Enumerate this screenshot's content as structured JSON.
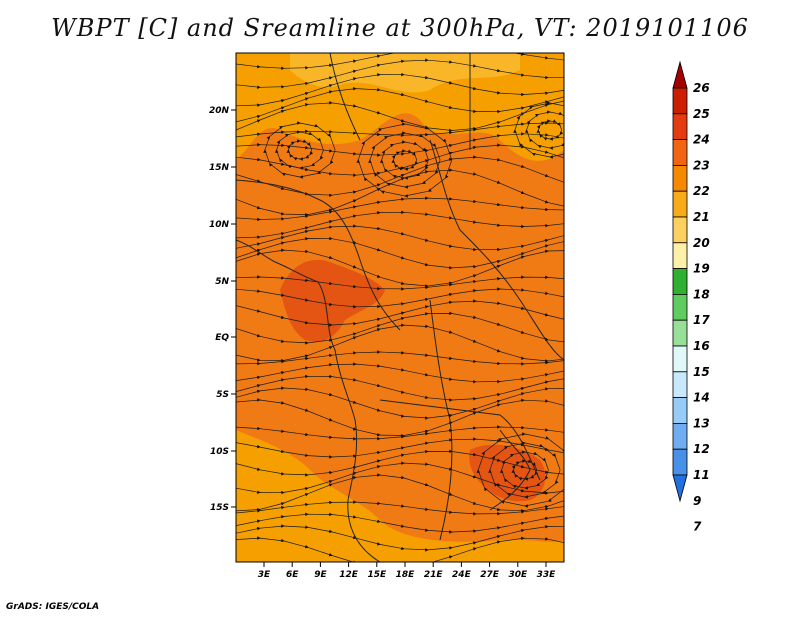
{
  "title": "WBPT [C] and Sreamline at 300hPa, VT: 2019101106",
  "credit": "GrADS: IGES/COLA",
  "map": {
    "lat_ticks": [
      "20N",
      "15N",
      "10N",
      "5N",
      "EQ",
      "5S",
      "10S",
      "15S"
    ],
    "lon_ticks": [
      "3E",
      "6E",
      "9E",
      "12E",
      "15E",
      "18E",
      "21E",
      "24E",
      "27E",
      "30E",
      "33E"
    ],
    "colors": {
      "base_22_23": "#f07a14",
      "band_23_24": "#e45412",
      "band_21_22": "#f5a000",
      "band_20_21": "#f8b628"
    }
  },
  "colorbar": {
    "labels": [
      "26",
      "25",
      "24",
      "23",
      "22",
      "21",
      "20",
      "19",
      "18",
      "17",
      "16",
      "15",
      "14",
      "13",
      "12",
      "11",
      "9",
      "7"
    ],
    "colors": [
      "#a50000",
      "#cc1e00",
      "#e43c10",
      "#f06412",
      "#f58a00",
      "#f8aa18",
      "#fbd060",
      "#fdf0a8",
      "#30b030",
      "#60cc60",
      "#98e098",
      "#e0f8f8",
      "#c8e8fc",
      "#98ccf8",
      "#70acf0",
      "#4890e8",
      "#2070e0"
    ]
  }
}
